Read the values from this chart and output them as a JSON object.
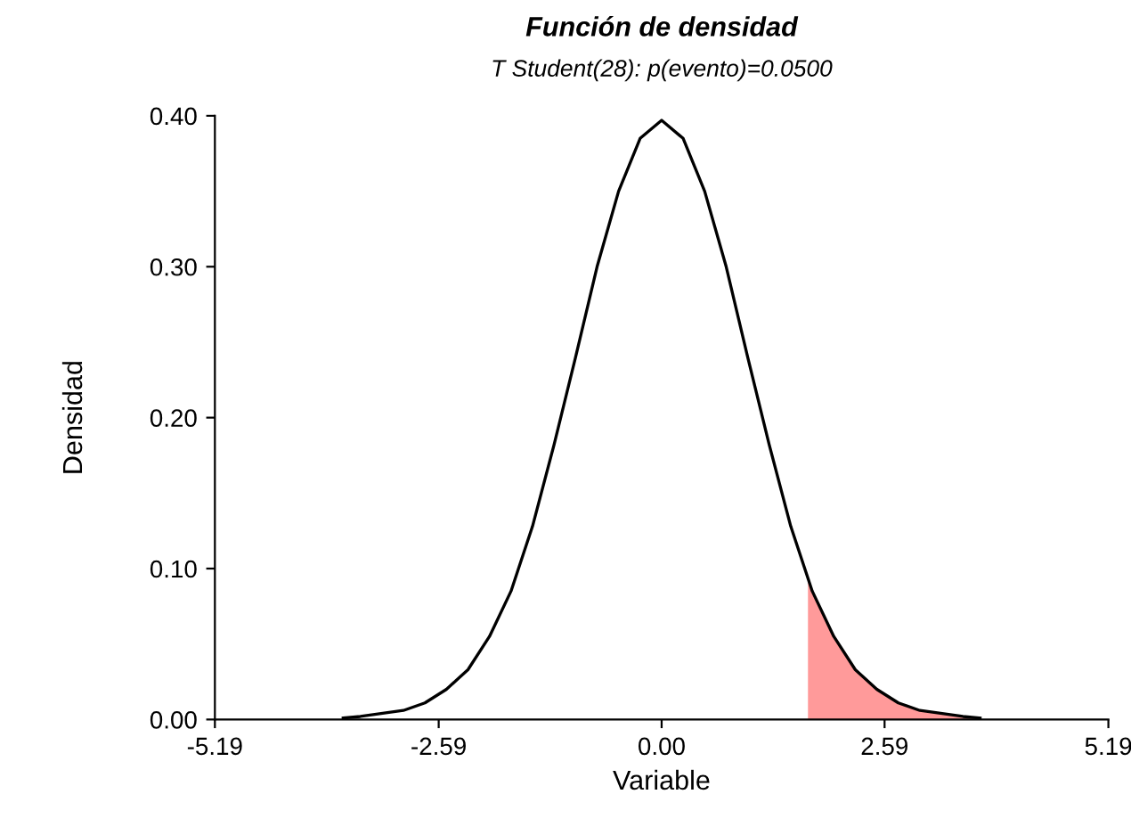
{
  "chart_data": {
    "type": "line",
    "title": "Función de densidad",
    "subtitle": "T Student(28): p(evento)=0.0500",
    "xlabel": "Variable",
    "ylabel": "Densidad",
    "xlim": [
      -5.19,
      5.19
    ],
    "ylim": [
      0,
      0.4
    ],
    "xticks": [
      -5.19,
      -2.59,
      {
        "value": 0,
        "label": "0.00"
      },
      2.59,
      5.19
    ],
    "yticks": [
      {
        "value": 0,
        "label": "0.00"
      },
      {
        "value": 0.1,
        "label": "0.10"
      },
      {
        "value": 0.2,
        "label": "0.20"
      },
      {
        "value": 0.3,
        "label": "0.30"
      },
      {
        "value": 0.4,
        "label": "0.40"
      }
    ],
    "grid": false,
    "legend": false,
    "marker": "none",
    "line_style": "solid",
    "series": [
      {
        "type": "area",
        "color": "#ff9a9a",
        "x": [
          1.7,
          1.75,
          2.0,
          2.25,
          2.5,
          2.75,
          3.0,
          3.5,
          3.7
        ],
        "values": [
          0.094,
          0.085,
          0.055,
          0.033,
          0.02,
          0.011,
          0.006,
          0.002,
          0.001
        ]
      },
      {
        "color": "#000000",
        "x": [
          -3.7,
          -3.5,
          -3.0,
          -2.75,
          -2.5,
          -2.25,
          -2.0,
          -1.75,
          -1.5,
          -1.25,
          -1.0,
          -0.75,
          -0.5,
          -0.25,
          0.0,
          0.25,
          0.5,
          0.75,
          1.0,
          1.25,
          1.5,
          1.75,
          2.0,
          2.25,
          2.5,
          2.75,
          3.0,
          3.5,
          3.7
        ],
        "values": [
          0.001,
          0.002,
          0.006,
          0.011,
          0.02,
          0.033,
          0.055,
          0.085,
          0.128,
          0.182,
          0.24,
          0.3,
          0.35,
          0.385,
          0.397,
          0.385,
          0.35,
          0.3,
          0.24,
          0.182,
          0.128,
          0.085,
          0.055,
          0.033,
          0.02,
          0.011,
          0.006,
          0.002,
          0.001
        ]
      }
    ]
  }
}
